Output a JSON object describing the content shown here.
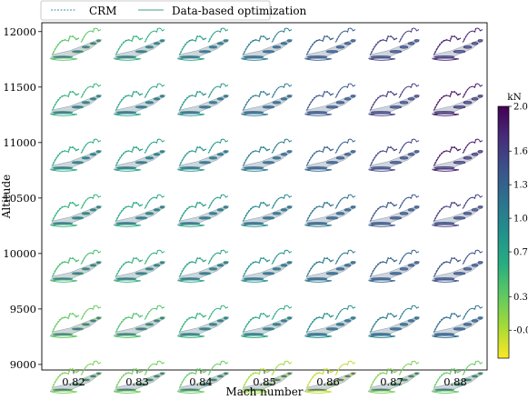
{
  "chart_data": {
    "type": "scatter",
    "title": "",
    "xlabel": "Mach number",
    "ylabel": "Altitude",
    "x_ticks": [
      0.82,
      0.83,
      0.84,
      0.85,
      0.86,
      0.87,
      0.88
    ],
    "y_ticks": [
      9000,
      9500,
      10000,
      10500,
      11000,
      11500,
      12000
    ],
    "xlim": [
      0.815,
      0.885
    ],
    "ylim": [
      8950,
      12080
    ],
    "legend": {
      "placement": "top",
      "entries": [
        {
          "label": "CRM",
          "style": "dashed"
        },
        {
          "label": "Data-based optimization",
          "style": "solid"
        }
      ]
    },
    "colorbar": {
      "label": "kN",
      "range": [
        -0.25,
        2.0
      ],
      "ticks": [
        "2.0",
        "1.6",
        "1.3",
        "1.0",
        "0.7",
        "0.3",
        "-0.0"
      ],
      "tick_values": [
        2.0,
        1.6,
        1.3,
        1.0,
        0.7,
        0.3,
        -0.0
      ],
      "colors": [
        "#fde725",
        "#a5db36",
        "#5ec962",
        "#27ad81",
        "#21918c",
        "#2c728e",
        "#3b528b",
        "#472d7b",
        "#440154"
      ]
    },
    "mach": [
      0.82,
      0.83,
      0.84,
      0.85,
      0.86,
      0.87,
      0.88
    ],
    "altitude": [
      12000,
      11500,
      11000,
      10500,
      10000,
      9500,
      9000
    ],
    "cell_values": [
      [
        0.35,
        0.55,
        0.75,
        1.05,
        1.35,
        1.6,
        1.8
      ],
      [
        0.55,
        0.7,
        0.85,
        1.1,
        1.4,
        1.65,
        1.9
      ],
      [
        0.6,
        0.7,
        0.8,
        1.05,
        1.3,
        1.55,
        1.85
      ],
      [
        0.55,
        0.65,
        0.75,
        0.95,
        1.15,
        1.4,
        1.6
      ],
      [
        0.45,
        0.55,
        0.7,
        0.85,
        1.1,
        1.3,
        1.45
      ],
      [
        0.3,
        0.4,
        0.55,
        0.65,
        0.9,
        1.05,
        1.2
      ],
      [
        0.2,
        0.25,
        0.3,
        0.05,
        -0.05,
        0.2,
        0.3
      ]
    ]
  }
}
